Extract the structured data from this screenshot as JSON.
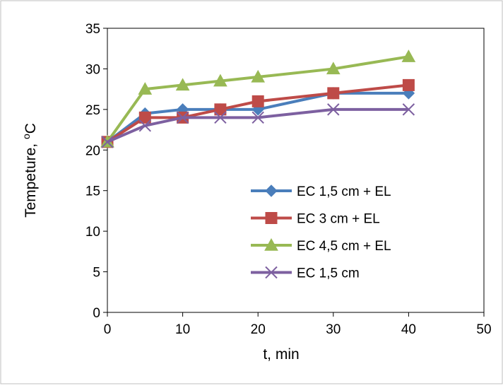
{
  "chart_data": {
    "type": "line",
    "title": "",
    "xlabel": "t, min",
    "ylabel": "Tempeture, ",
    "ylabel_unit": "oC",
    "ylabel_unit_superscript": "o",
    "ylabel_unit_base": "C",
    "xlim": [
      0,
      50
    ],
    "ylim": [
      0,
      35
    ],
    "x_ticks": [
      "0",
      "10",
      "20",
      "30",
      "40",
      "50"
    ],
    "y_ticks": [
      "0",
      "5",
      "10",
      "15",
      "20",
      "25",
      "30",
      "35"
    ],
    "grid": false,
    "legend_position": "inside-right",
    "x": [
      0,
      5,
      10,
      15,
      20,
      30,
      40
    ],
    "series": [
      {
        "name": "EC 1,5 cm + EL",
        "marker": "diamond",
        "color": "#4A7EBB",
        "values": [
          21,
          24.5,
          25,
          25,
          25,
          27,
          27
        ]
      },
      {
        "name": "EC 3 cm + EL",
        "marker": "square",
        "color": "#BE4B48",
        "values": [
          21,
          24,
          24,
          25,
          26,
          27,
          28
        ]
      },
      {
        "name": "EC 4,5 cm + EL",
        "marker": "triangle",
        "color": "#98B954",
        "values": [
          21,
          27.5,
          28,
          28.5,
          29,
          30,
          31.5
        ]
      },
      {
        "name": "EC 1,5 cm",
        "marker": "x",
        "color": "#7D60A0",
        "values": [
          21,
          23,
          24,
          24,
          24,
          25,
          25
        ]
      }
    ]
  }
}
